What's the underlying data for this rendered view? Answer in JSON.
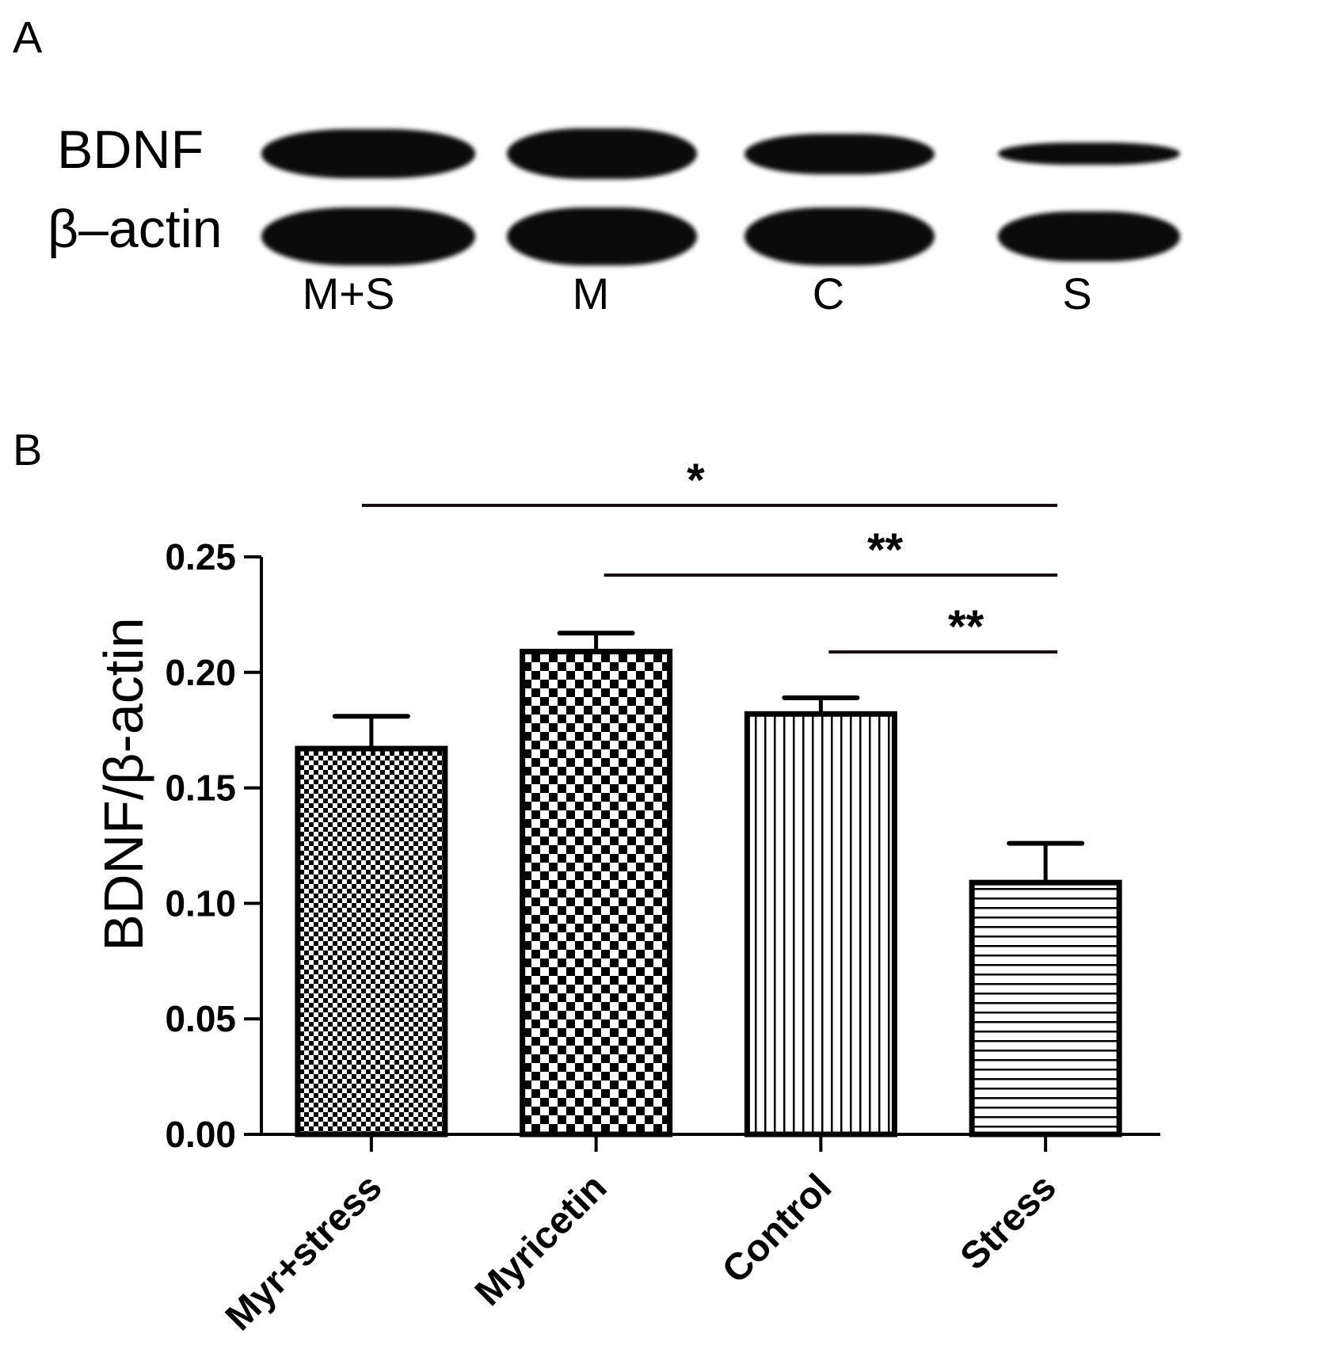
{
  "panel_a": {
    "label": "A",
    "rows": [
      {
        "name": "BDNF",
        "intensities": [
          0.9,
          0.95,
          0.75,
          0.4
        ]
      },
      {
        "name": "β–actin",
        "intensities": [
          1.0,
          1.0,
          1.0,
          0.85
        ]
      }
    ],
    "lanes": [
      "M+S",
      "M",
      "C",
      "S"
    ]
  },
  "panel_b": {
    "label": "B",
    "significance": [
      {
        "from": "Myr+stress",
        "to": "Stress",
        "mark": "*"
      },
      {
        "from": "Myricetin",
        "to": "Stress",
        "mark": "**"
      },
      {
        "from": "Control",
        "to": "Stress",
        "mark": "**"
      }
    ]
  },
  "chart_data": {
    "type": "bar",
    "categories": [
      "Myr+stress",
      "Myricetin",
      "Control",
      "Stress"
    ],
    "values": [
      0.167,
      0.209,
      0.182,
      0.109
    ],
    "errors": [
      0.014,
      0.008,
      0.007,
      0.017
    ],
    "patterns": [
      "fine-checker",
      "coarse-checker",
      "vertical-lines",
      "horizontal-lines"
    ],
    "ylabel": "BDNF/β-actin",
    "ylim": [
      0,
      0.25
    ],
    "yticks": [
      "0.00",
      "0.05",
      "0.10",
      "0.15",
      "0.20",
      "0.25"
    ],
    "grid": false
  }
}
